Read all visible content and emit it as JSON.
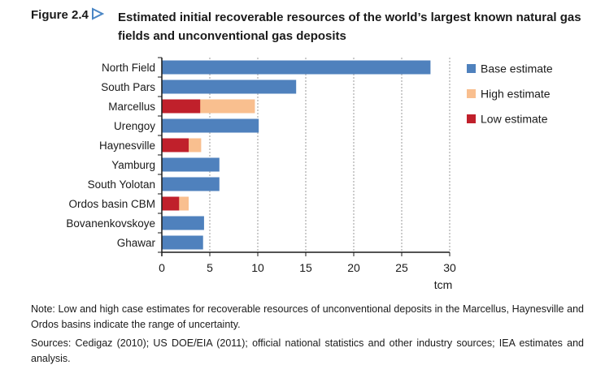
{
  "figure": {
    "number": "Figure 2.4",
    "title": "Estimated initial recoverable resources of the world’s largest known natural gas fields and unconventional gas deposits",
    "arrow_color": "#4a86c5"
  },
  "chart_data": {
    "type": "bar",
    "orientation": "horizontal",
    "stacked": true,
    "categories": [
      "North Field",
      "South Pars",
      "Marcellus",
      "Urengoy",
      "Haynesville",
      "Yamburg",
      "South Yolotan",
      "Ordos basin CBM",
      "Bovanenkovskoye",
      "Ghawar"
    ],
    "series": [
      {
        "name": "Base estimate",
        "color": "#4f81bd",
        "values": [
          28,
          14,
          0,
          10.1,
          0,
          6,
          6,
          0,
          4.4,
          4.3
        ]
      },
      {
        "name": "Low estimate",
        "color": "#c0202b",
        "values": [
          0,
          0,
          4,
          0,
          2.8,
          0,
          0,
          1.8,
          0,
          0
        ]
      },
      {
        "name": "High estimate",
        "color": "#f9bf8f",
        "values": [
          0,
          0,
          9.7,
          0,
          4.1,
          0,
          0,
          2.8,
          0,
          0
        ]
      }
    ],
    "legend_order": [
      "Base estimate",
      "High estimate",
      "Low estimate"
    ],
    "legend_position": "right",
    "xlabel": "tcm",
    "xlim": [
      0,
      30
    ],
    "xticks": [
      0,
      5,
      10,
      15,
      20,
      25,
      30
    ],
    "grid": "vertical dashed"
  },
  "notes": {
    "note": "Note: Low and high case estimates for recoverable resources of unconventional deposits in the Marcellus, Haynesville and Ordos basins indicate the range of uncertainty.",
    "sources": "Sources: Cedigaz (2010); US DOE/EIA (2011); official national statistics and other industry sources; IEA estimates and analysis."
  }
}
